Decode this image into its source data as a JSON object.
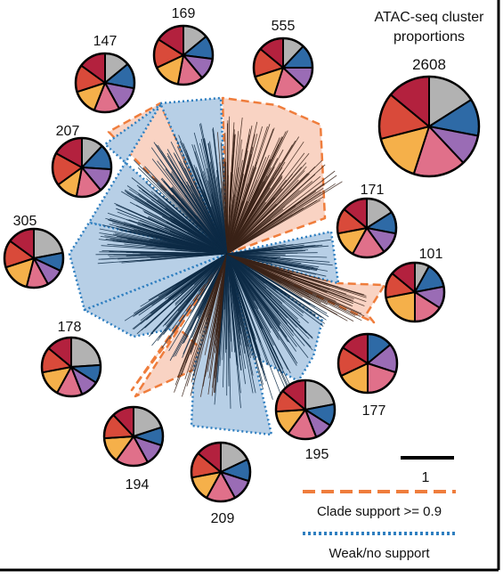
{
  "title": {
    "line1": "ATAC-seq cluster",
    "line2": "proportions"
  },
  "colors": {
    "gray": "#b2b2b2",
    "blue": "#2e6aa6",
    "purple": "#9a6cb5",
    "pink": "#e0708a",
    "orange_yellow": "#f5b04a",
    "orange": "#f07a3c",
    "red": "#d94a3a",
    "crimson": "#b3213e",
    "clade_strong_fill": "#f9d3c3",
    "clade_strong_stroke": "#ef7d3c",
    "clade_weak_fill": "#b7cfe6",
    "clade_weak_stroke": "#2f7fc0",
    "branch_dark": "#3a2218",
    "branch_blue": "#0d2a45",
    "frame": "#000000"
  },
  "clusters": [
    {
      "id": "total",
      "label": "2608",
      "proportions": [
        0.16,
        0.12,
        0.1,
        0.17,
        0.16,
        0.15,
        0.14
      ]
    },
    {
      "id": "c555",
      "label": "555",
      "proportions": [
        0.12,
        0.13,
        0.12,
        0.18,
        0.15,
        0.16,
        0.14
      ]
    },
    {
      "id": "c169",
      "label": "169",
      "proportions": [
        0.14,
        0.13,
        0.12,
        0.14,
        0.15,
        0.16,
        0.16
      ]
    },
    {
      "id": "c147",
      "label": "147",
      "proportions": [
        0.14,
        0.14,
        0.14,
        0.14,
        0.14,
        0.15,
        0.15
      ]
    },
    {
      "id": "c207",
      "label": "207",
      "proportions": [
        0.12,
        0.14,
        0.13,
        0.14,
        0.12,
        0.18,
        0.17
      ]
    },
    {
      "id": "c305",
      "label": "305",
      "proportions": [
        0.22,
        0.1,
        0.1,
        0.12,
        0.16,
        0.15,
        0.15
      ]
    },
    {
      "id": "c178",
      "label": "178",
      "proportions": [
        0.24,
        0.1,
        0.1,
        0.14,
        0.14,
        0.14,
        0.14
      ]
    },
    {
      "id": "c194",
      "label": "194",
      "proportions": [
        0.2,
        0.1,
        0.12,
        0.18,
        0.14,
        0.14,
        0.12
      ]
    },
    {
      "id": "c209",
      "label": "209",
      "proportions": [
        0.18,
        0.12,
        0.12,
        0.16,
        0.14,
        0.14,
        0.14
      ]
    },
    {
      "id": "c195",
      "label": "195",
      "proportions": [
        0.22,
        0.12,
        0.1,
        0.16,
        0.14,
        0.12,
        0.14
      ]
    },
    {
      "id": "c177",
      "label": "177",
      "proportions": [
        0.0,
        0.14,
        0.16,
        0.2,
        0.18,
        0.16,
        0.16
      ]
    },
    {
      "id": "c101",
      "label": "101",
      "proportions": [
        0.08,
        0.14,
        0.12,
        0.16,
        0.22,
        0.14,
        0.14
      ]
    },
    {
      "id": "c171",
      "label": "171",
      "proportions": [
        0.16,
        0.12,
        0.12,
        0.18,
        0.14,
        0.14,
        0.14
      ]
    }
  ],
  "scale_bar": {
    "label": "1"
  },
  "legend": {
    "strong": "Clade support >= 0.9",
    "weak": "Weak/no support"
  }
}
